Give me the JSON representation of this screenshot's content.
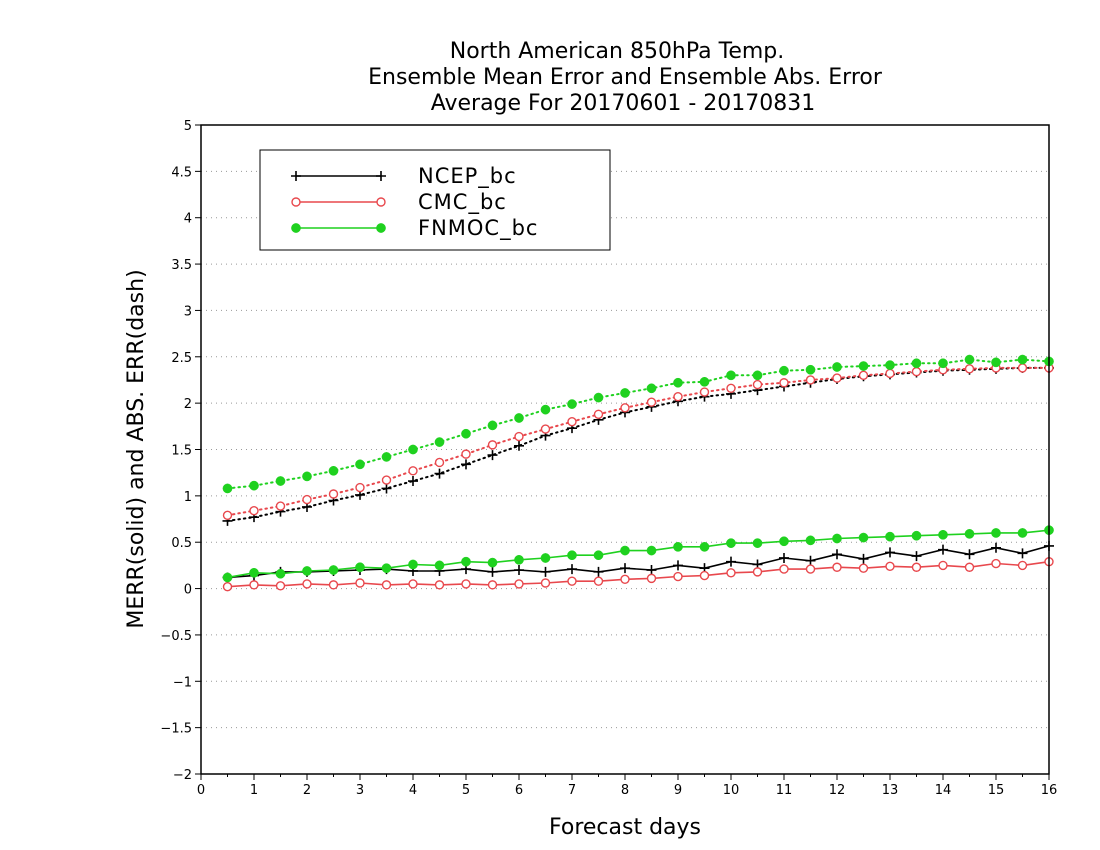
{
  "chart_data": {
    "type": "line",
    "title": [
      "North American 850hPa Temp.",
      "Ensemble Mean Error and Ensemble Abs. Error",
      "Average For 20170601 - 20170831"
    ],
    "xlabel": "Forecast days",
    "ylabel": "MERR(solid) and ABS. ERR(dash)",
    "xlim": [
      0,
      16
    ],
    "ylim": [
      -2,
      5
    ],
    "x_ticks": [
      0,
      1,
      2,
      3,
      4,
      5,
      6,
      7,
      8,
      9,
      10,
      11,
      12,
      13,
      14,
      15,
      16
    ],
    "y_ticks": [
      -2,
      -1.5,
      -1,
      -0.5,
      0,
      0.5,
      1,
      1.5,
      2,
      2.5,
      3,
      3.5,
      4,
      4.5,
      5
    ],
    "grid": true,
    "legend_position": "top-left",
    "x": [
      0.5,
      1,
      1.5,
      2,
      2.5,
      3,
      3.5,
      4,
      4.5,
      5,
      5.5,
      6,
      6.5,
      7,
      7.5,
      8,
      8.5,
      9,
      9.5,
      10,
      10.5,
      11,
      11.5,
      12,
      12.5,
      13,
      13.5,
      14,
      14.5,
      15,
      15.5,
      16
    ],
    "series": [
      {
        "name": "NCEP_bc",
        "color": "#000000",
        "marker": "plus",
        "merr": [
          0.12,
          0.14,
          0.18,
          0.18,
          0.19,
          0.2,
          0.21,
          0.19,
          0.19,
          0.21,
          0.18,
          0.2,
          0.18,
          0.21,
          0.18,
          0.22,
          0.2,
          0.25,
          0.22,
          0.29,
          0.26,
          0.33,
          0.3,
          0.37,
          0.32,
          0.39,
          0.35,
          0.42,
          0.37,
          0.44,
          0.38,
          0.46
        ],
        "abs_err": [
          0.73,
          0.77,
          0.83,
          0.88,
          0.95,
          1.01,
          1.08,
          1.16,
          1.24,
          1.34,
          1.44,
          1.54,
          1.65,
          1.73,
          1.82,
          1.9,
          1.96,
          2.02,
          2.07,
          2.1,
          2.14,
          2.18,
          2.22,
          2.26,
          2.29,
          2.31,
          2.33,
          2.35,
          2.36,
          2.37,
          2.38,
          2.38
        ]
      },
      {
        "name": "CMC_bc",
        "color": "#e8484d",
        "marker": "open-circle",
        "merr": [
          0.02,
          0.04,
          0.03,
          0.05,
          0.04,
          0.06,
          0.04,
          0.05,
          0.04,
          0.05,
          0.04,
          0.05,
          0.06,
          0.08,
          0.08,
          0.1,
          0.11,
          0.13,
          0.14,
          0.17,
          0.18,
          0.21,
          0.21,
          0.23,
          0.22,
          0.24,
          0.23,
          0.25,
          0.23,
          0.27,
          0.25,
          0.29
        ],
        "abs_err": [
          0.79,
          0.84,
          0.89,
          0.96,
          1.02,
          1.09,
          1.17,
          1.27,
          1.36,
          1.45,
          1.55,
          1.64,
          1.72,
          1.8,
          1.88,
          1.95,
          2.01,
          2.07,
          2.12,
          2.16,
          2.2,
          2.22,
          2.25,
          2.27,
          2.3,
          2.32,
          2.34,
          2.36,
          2.37,
          2.38,
          2.38,
          2.38
        ]
      },
      {
        "name": "FNMOC_bc",
        "color": "#1fd11f",
        "marker": "filled-circle",
        "merr": [
          0.12,
          0.17,
          0.16,
          0.19,
          0.2,
          0.23,
          0.22,
          0.26,
          0.25,
          0.29,
          0.28,
          0.31,
          0.33,
          0.36,
          0.36,
          0.41,
          0.41,
          0.45,
          0.45,
          0.49,
          0.49,
          0.51,
          0.52,
          0.54,
          0.55,
          0.56,
          0.57,
          0.58,
          0.59,
          0.6,
          0.6,
          0.63
        ],
        "abs_err": [
          1.08,
          1.11,
          1.16,
          1.21,
          1.27,
          1.34,
          1.42,
          1.5,
          1.58,
          1.67,
          1.76,
          1.84,
          1.93,
          1.99,
          2.06,
          2.11,
          2.16,
          2.22,
          2.23,
          2.3,
          2.3,
          2.35,
          2.36,
          2.39,
          2.4,
          2.41,
          2.43,
          2.43,
          2.47,
          2.44,
          2.47,
          2.45
        ]
      }
    ]
  }
}
